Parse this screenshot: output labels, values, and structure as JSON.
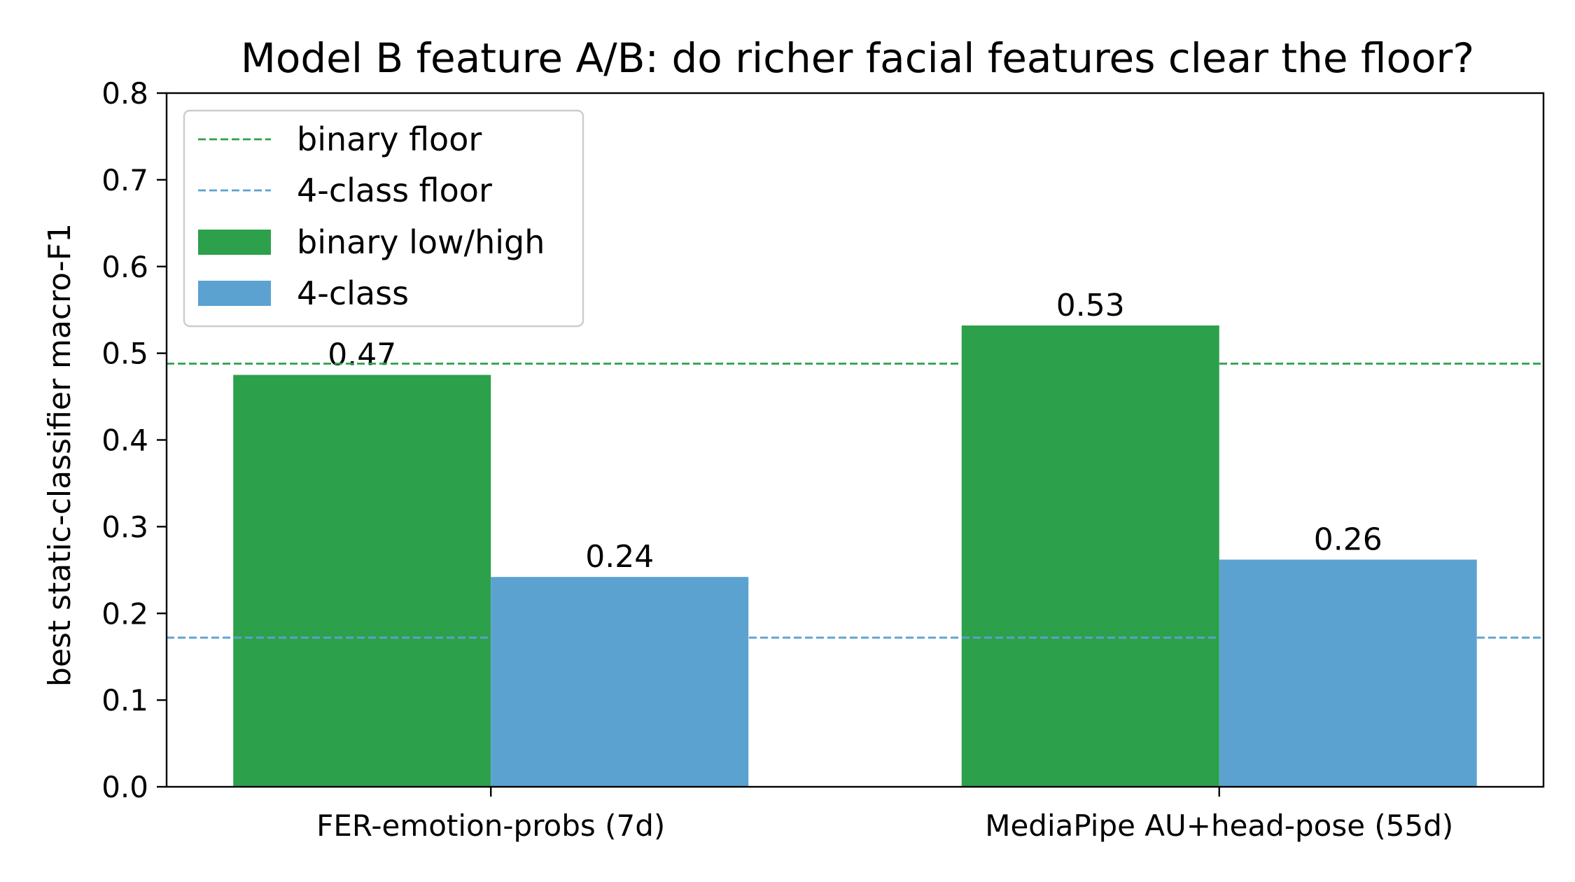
{
  "chart_data": {
    "type": "bar",
    "title": "Model B feature A/B: do richer facial features clear the floor?",
    "xlabel": "",
    "ylabel": "best static-classifier macro-F1",
    "ylim": [
      0,
      0.8
    ],
    "yticks": [
      "0.0",
      "0.1",
      "0.2",
      "0.3",
      "0.4",
      "0.5",
      "0.6",
      "0.7",
      "0.8"
    ],
    "categories": [
      "FER-emotion-probs (7d)",
      "MediaPipe AU+head-pose (55d)"
    ],
    "series": [
      {
        "name": "binary low/high",
        "color": "#2ca04b",
        "values": [
          0.475,
          0.532
        ],
        "labels": [
          "0.47",
          "0.53"
        ]
      },
      {
        "name": "4-class",
        "color": "#5ba2d1",
        "values": [
          0.242,
          0.262
        ],
        "labels": [
          "0.24",
          "0.26"
        ]
      }
    ],
    "reference_lines": [
      {
        "name": "binary floor",
        "value": 0.488,
        "color": "#2ca04b",
        "style": "dashed"
      },
      {
        "name": "4-class floor",
        "value": 0.172,
        "color": "#5ba2d1",
        "style": "dashed"
      }
    ],
    "legend": {
      "placement": "top-left",
      "order": [
        "binary floor",
        "4-class floor",
        "binary low/high",
        "4-class"
      ]
    },
    "grid": false
  }
}
